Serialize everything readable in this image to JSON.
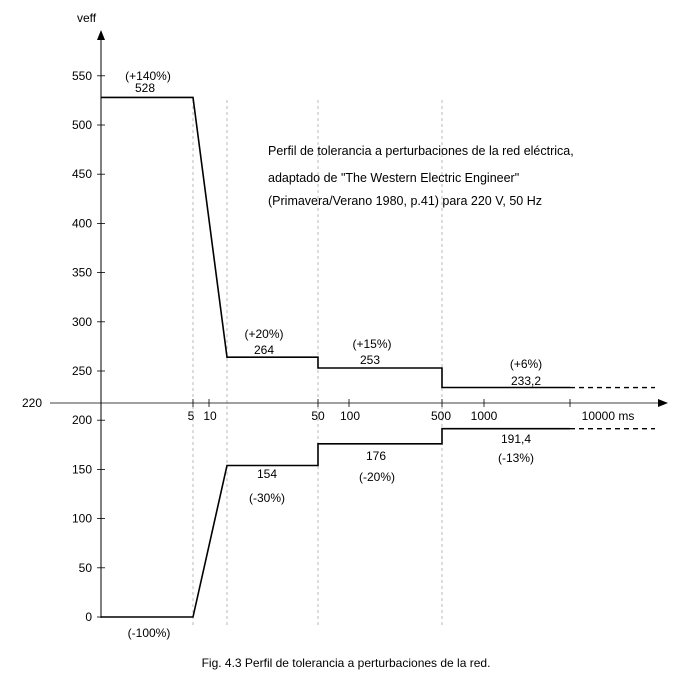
{
  "chart_data": {
    "type": "line",
    "ylabel": "veff",
    "xunit": "ms",
    "nominal_label": "220",
    "yticks": [
      0,
      50,
      100,
      150,
      200,
      250,
      300,
      350,
      400,
      450,
      500,
      550
    ],
    "ylim": [
      0,
      560
    ],
    "xticks": [
      {
        "label": "5",
        "value": 5
      },
      {
        "label": "10",
        "value": 10
      },
      {
        "label": "50",
        "value": 50
      },
      {
        "label": "100",
        "value": 100
      },
      {
        "label": "500",
        "value": 500
      },
      {
        "label": "1000",
        "value": 1000
      },
      {
        "label": "10000 ms",
        "value": 10000
      }
    ],
    "series": [
      {
        "points": [
          [
            0,
            528
          ],
          [
            5,
            528
          ],
          [
            12,
            264
          ],
          [
            50,
            264
          ],
          [
            50,
            253
          ],
          [
            500,
            253
          ],
          [
            500,
            233.2
          ],
          [
            10000,
            233.2
          ]
        ],
        "continues": true
      },
      {
        "points": [
          [
            0,
            0
          ],
          [
            5,
            0
          ],
          [
            12,
            154
          ],
          [
            50,
            154
          ],
          [
            50,
            176
          ],
          [
            500,
            176
          ],
          [
            500,
            191.4
          ],
          [
            10000,
            191.4
          ]
        ],
        "continues": true
      }
    ],
    "guides_x": [
      5,
      12,
      50,
      500
    ],
    "annotations": [
      {
        "key": "u1_pct",
        "text": "(+140%)"
      },
      {
        "key": "u1_val",
        "text": "528"
      },
      {
        "key": "u2_pct",
        "text": "(+20%)"
      },
      {
        "key": "u2_val",
        "text": "264"
      },
      {
        "key": "u3_pct",
        "text": "(+15%)"
      },
      {
        "key": "u3_val",
        "text": "253"
      },
      {
        "key": "u4_pct",
        "text": "(+6%)"
      },
      {
        "key": "u4_val",
        "text": "233,2"
      },
      {
        "key": "l2_val",
        "text": "154"
      },
      {
        "key": "l2_pct",
        "text": "(-30%)"
      },
      {
        "key": "l3_val",
        "text": "176"
      },
      {
        "key": "l3_pct",
        "text": "(-20%)"
      },
      {
        "key": "l4_val",
        "text": "191,4"
      },
      {
        "key": "l4_pct",
        "text": "(-13%)"
      },
      {
        "key": "l1_pct",
        "text": "(-100%)"
      }
    ]
  },
  "note_lines": [
    "Perfil de tolerancia a perturbaciones de la red eléctrica,",
    "adaptado de \"The Western Electric Engineer\"",
    "(Primavera/Verano 1980, p.41) para 220 V, 50 Hz"
  ],
  "caption": "Fig. 4.3 Perfil de tolerancia a perturbaciones de la red."
}
